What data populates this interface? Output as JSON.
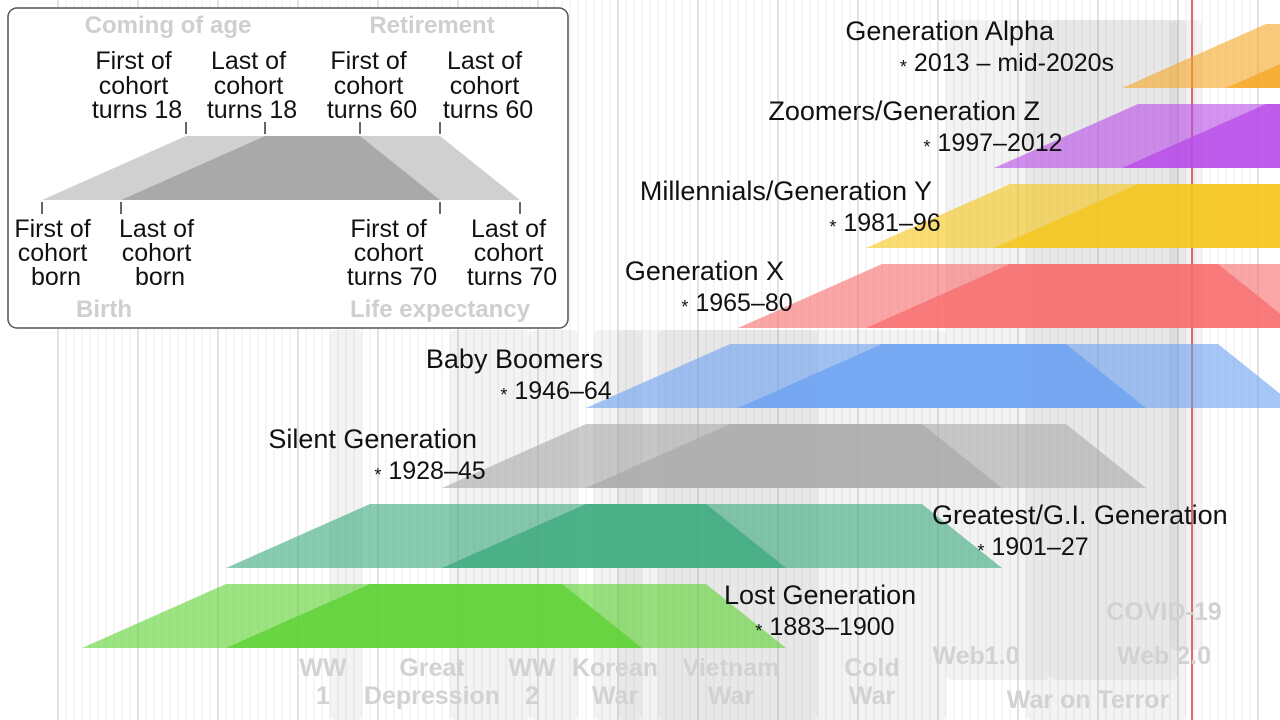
{
  "axis": {
    "start_year": 1880,
    "end_year": 2030,
    "now_year": 2023
  },
  "legend": {
    "coming_of_age": "Coming of age",
    "retirement": "Retirement",
    "birth": "Birth",
    "life_expectancy": "Life expectancy",
    "first_turns_18": [
      "First of",
      "cohort",
      "turns 18"
    ],
    "last_turns_18": [
      "Last of",
      "cohort",
      "turns 18"
    ],
    "first_turns_60": [
      "First of",
      "cohort",
      "turns 60"
    ],
    "last_turns_60": [
      "Last of",
      "cohort",
      "turns 60"
    ],
    "first_born": [
      "First of",
      "cohort",
      "born"
    ],
    "last_born": [
      "Last of",
      "cohort",
      "born"
    ],
    "first_turns_70": [
      "First of",
      "cohort",
      "turns 70"
    ],
    "last_turns_70": [
      "Last of",
      "cohort",
      "turns 70"
    ]
  },
  "generations": [
    {
      "name": "Generation Alpha",
      "years": "2013 – mid-2020s",
      "start": 2013,
      "end": 2025,
      "color": "#f5a623"
    },
    {
      "name": "Zoomers/Generation Z",
      "years": "1997–2012",
      "start": 1997,
      "end": 2012,
      "color": "#b84ae8"
    },
    {
      "name": "Millennials/Generation Y",
      "years": "1981–96",
      "start": 1981,
      "end": 1996,
      "color": "#f5c518"
    },
    {
      "name": "Generation X",
      "years": "1965–80",
      "start": 1965,
      "end": 1980,
      "color": "#f76b6b"
    },
    {
      "name": "Baby Boomers",
      "years": "1946–64",
      "start": 1946,
      "end": 1964,
      "color": "#6aa0f2"
    },
    {
      "name": "Silent Generation",
      "years": "1928–45",
      "start": 1928,
      "end": 1945,
      "color": "#a9a9a9"
    },
    {
      "name": "Greatest/G.I. Generation",
      "years": "1901–27",
      "start": 1901,
      "end": 1927,
      "color": "#3aa87c"
    },
    {
      "name": "Lost Generation",
      "years": "1883–1900",
      "start": 1883,
      "end": 1900,
      "color": "#5ad02e"
    }
  ],
  "events": [
    {
      "lines": [
        "WW",
        "1"
      ],
      "start": 1914,
      "end": 1918
    },
    {
      "lines": [
        "Great",
        "Depression"
      ],
      "start": 1929,
      "end": 1939
    },
    {
      "lines": [
        "WW",
        "2"
      ],
      "start": 1939,
      "end": 1945
    },
    {
      "lines": [
        "Korean",
        "War"
      ],
      "start": 1950,
      "end": 1953
    },
    {
      "lines": [
        "Vietnam",
        "War"
      ],
      "start": 1955,
      "end": 1975
    },
    {
      "lines": [
        "Cold",
        "War"
      ],
      "start": 1947,
      "end": 1991
    },
    {
      "lines": [
        "Web1.0"
      ],
      "start": 1991,
      "end": 2004
    },
    {
      "lines": [
        "Web 2.0"
      ],
      "start": 2004,
      "end": 2020
    },
    {
      "lines": [
        "War on Terror"
      ],
      "start": 2001,
      "end": 2021
    },
    {
      "lines": [
        "COVID-19"
      ],
      "start": 2019,
      "end": 2023
    }
  ]
}
